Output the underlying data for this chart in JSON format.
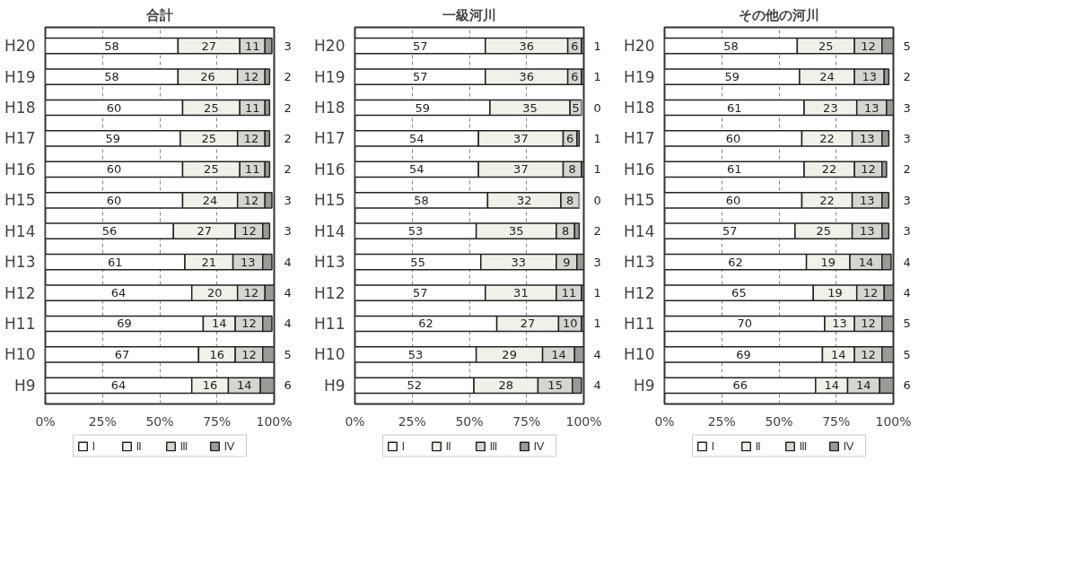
{
  "chart_data": [
    {
      "type": "bar",
      "title": "合計",
      "orientation": "horizontal",
      "stacked": true,
      "data_labels": true,
      "grid": "x",
      "legend": "bottom",
      "categories": [
        "H20",
        "H19",
        "H18",
        "H17",
        "H16",
        "H15",
        "H14",
        "H13",
        "H12",
        "H11",
        "H10",
        "H9"
      ],
      "xlim": [
        0,
        100
      ],
      "xticks": [
        {
          "value": 0,
          "label": "0%"
        },
        {
          "value": 25,
          "label": "25%"
        },
        {
          "value": 50,
          "label": "50%"
        },
        {
          "value": 75,
          "label": "75%"
        },
        {
          "value": 100,
          "label": "100%"
        }
      ],
      "series": [
        {
          "name": "Ⅰ",
          "color": "#ffffff",
          "values": [
            58,
            58,
            60,
            59,
            60,
            60,
            56,
            61,
            64,
            69,
            67,
            64
          ]
        },
        {
          "name": "Ⅱ",
          "color": "#f1f1ea",
          "values": [
            27,
            26,
            25,
            25,
            25,
            24,
            27,
            21,
            20,
            14,
            16,
            16
          ]
        },
        {
          "name": "Ⅲ",
          "color": "#d6d6d0",
          "values": [
            11,
            12,
            11,
            12,
            11,
            12,
            12,
            13,
            12,
            12,
            12,
            14
          ]
        },
        {
          "name": "Ⅳ",
          "color": "#9a9a96",
          "values": [
            3,
            2,
            2,
            2,
            2,
            3,
            3,
            4,
            4,
            4,
            5,
            6
          ]
        }
      ]
    },
    {
      "type": "bar",
      "title": "一級河川",
      "orientation": "horizontal",
      "stacked": true,
      "data_labels": true,
      "grid": "x",
      "legend": "bottom",
      "categories": [
        "H20",
        "H19",
        "H18",
        "H17",
        "H16",
        "H15",
        "H14",
        "H13",
        "H12",
        "H11",
        "H10",
        "H9"
      ],
      "xlim": [
        0,
        100
      ],
      "xticks": [
        {
          "value": 0,
          "label": "0%"
        },
        {
          "value": 25,
          "label": "25%"
        },
        {
          "value": 50,
          "label": "50%"
        },
        {
          "value": 75,
          "label": "75%"
        },
        {
          "value": 100,
          "label": "100%"
        }
      ],
      "series": [
        {
          "name": "Ⅰ",
          "color": "#ffffff",
          "values": [
            57,
            57,
            59,
            54,
            54,
            58,
            53,
            55,
            57,
            62,
            53,
            52
          ]
        },
        {
          "name": "Ⅱ",
          "color": "#f1f1ea",
          "values": [
            36,
            36,
            35,
            37,
            37,
            32,
            35,
            33,
            31,
            27,
            29,
            28
          ]
        },
        {
          "name": "Ⅲ",
          "color": "#d6d6d0",
          "values": [
            6,
            6,
            5,
            6,
            8,
            8,
            8,
            9,
            11,
            10,
            14,
            15
          ]
        },
        {
          "name": "Ⅳ",
          "color": "#9a9a96",
          "values": [
            1,
            1,
            0,
            1,
            1,
            0,
            2,
            3,
            1,
            1,
            4,
            4
          ]
        }
      ]
    },
    {
      "type": "bar",
      "title": "その他の河川",
      "orientation": "horizontal",
      "stacked": true,
      "data_labels": true,
      "grid": "x",
      "legend": "bottom",
      "categories": [
        "H20",
        "H19",
        "H18",
        "H17",
        "H16",
        "H15",
        "H14",
        "H13",
        "H12",
        "H11",
        "H10",
        "H9"
      ],
      "xlim": [
        0,
        100
      ],
      "xticks": [
        {
          "value": 0,
          "label": "0%"
        },
        {
          "value": 25,
          "label": "25%"
        },
        {
          "value": 50,
          "label": "50%"
        },
        {
          "value": 75,
          "label": "75%"
        },
        {
          "value": 100,
          "label": "100%"
        }
      ],
      "series": [
        {
          "name": "Ⅰ",
          "color": "#ffffff",
          "values": [
            58,
            59,
            61,
            60,
            61,
            60,
            57,
            62,
            65,
            70,
            69,
            66
          ]
        },
        {
          "name": "Ⅱ",
          "color": "#f1f1ea",
          "values": [
            25,
            24,
            23,
            22,
            22,
            22,
            25,
            19,
            19,
            13,
            14,
            14
          ]
        },
        {
          "name": "Ⅲ",
          "color": "#d6d6d0",
          "values": [
            12,
            13,
            13,
            13,
            12,
            13,
            13,
            14,
            12,
            12,
            12,
            14
          ]
        },
        {
          "name": "Ⅳ",
          "color": "#9a9a96",
          "values": [
            5,
            2,
            3,
            3,
            2,
            3,
            3,
            4,
            4,
            5,
            5,
            6
          ]
        }
      ]
    }
  ]
}
